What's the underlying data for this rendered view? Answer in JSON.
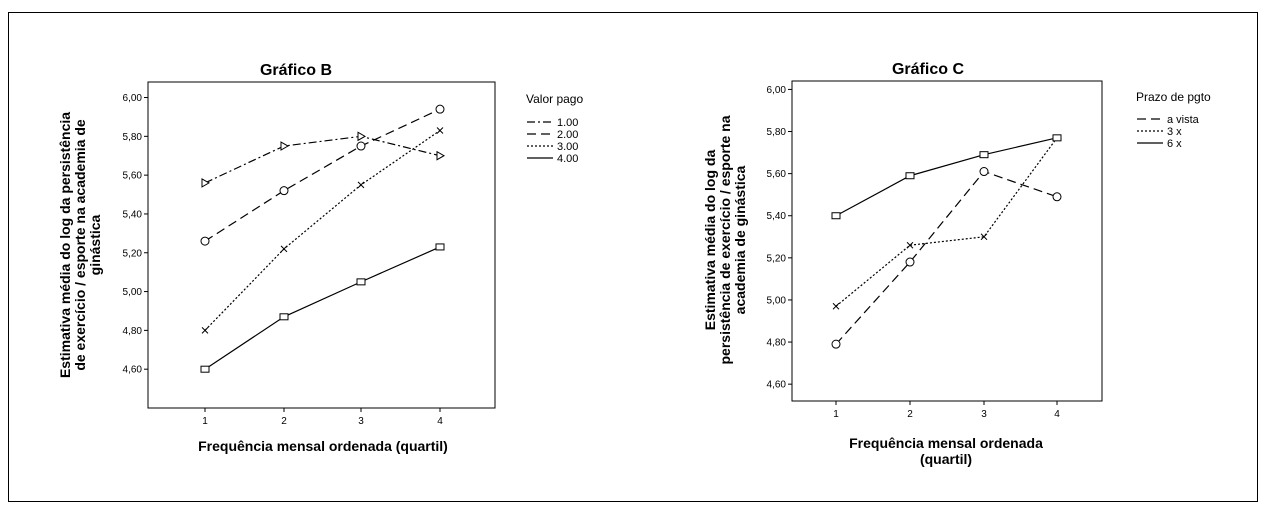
{
  "chart_data": [
    {
      "type": "line",
      "title": "Gráfico B",
      "xlabel": "Frequência mensal ordenada (quartil)",
      "ylabel_lines": [
        "Estimativa média do log da persistência",
        "de exercício / esporte na academia de",
        "ginástica"
      ],
      "x": [
        1,
        2,
        3,
        4
      ],
      "x_tick_labels": [
        "1",
        "2",
        "3",
        "4"
      ],
      "ylim": [
        4.4,
        6.08
      ],
      "y_ticks": [
        4.6,
        4.8,
        5.0,
        5.2,
        5.4,
        5.6,
        5.8,
        6.0
      ],
      "y_tick_labels": [
        "4,60",
        "4,80",
        "5,00",
        "5,20",
        "5,40",
        "5,60",
        "5,80",
        "6,00"
      ],
      "legend_title": "Valor pago",
      "legend_position": "right",
      "series": [
        {
          "name": "1.00",
          "values": [
            5.56,
            5.75,
            5.8,
            5.7
          ],
          "dash": "dashdot",
          "marker": "triangle"
        },
        {
          "name": "2.00",
          "values": [
            5.26,
            5.52,
            5.75,
            5.94
          ],
          "dash": "dashed",
          "marker": "circle"
        },
        {
          "name": "3.00",
          "values": [
            4.8,
            5.22,
            5.55,
            5.83
          ],
          "dash": "dotted",
          "marker": "x"
        },
        {
          "name": "4.00",
          "values": [
            4.6,
            4.87,
            5.05,
            5.23
          ],
          "dash": "solid",
          "marker": "square"
        }
      ]
    },
    {
      "type": "line",
      "title": "Gráfico C",
      "xlabel_lines": [
        "Frequência mensal ordenada",
        "(quartil)"
      ],
      "ylabel_lines": [
        "Estimativa média do log da",
        "persistência de exercício / esporte na",
        "academia de ginástica"
      ],
      "x": [
        1,
        2,
        3,
        4
      ],
      "x_tick_labels": [
        "1",
        "2",
        "3",
        "4"
      ],
      "ylim": [
        4.52,
        6.04
      ],
      "y_ticks": [
        4.6,
        4.8,
        5.0,
        5.2,
        5.4,
        5.6,
        5.8,
        6.0
      ],
      "y_tick_labels": [
        "4,60",
        "4,80",
        "5,00",
        "5,20",
        "5,40",
        "5,60",
        "5,80",
        "6,00"
      ],
      "legend_title": "Prazo de pgto",
      "legend_position": "right",
      "series": [
        {
          "name": "a vista",
          "values": [
            4.79,
            5.18,
            5.61,
            5.49
          ],
          "dash": "dashed",
          "marker": "circle"
        },
        {
          "name": "3 x",
          "values": [
            4.97,
            5.26,
            5.3,
            5.77
          ],
          "dash": "dotted",
          "marker": "x"
        },
        {
          "name": "6 x",
          "values": [
            5.4,
            5.59,
            5.69,
            5.77
          ],
          "dash": "solid",
          "marker": "square"
        }
      ]
    }
  ]
}
